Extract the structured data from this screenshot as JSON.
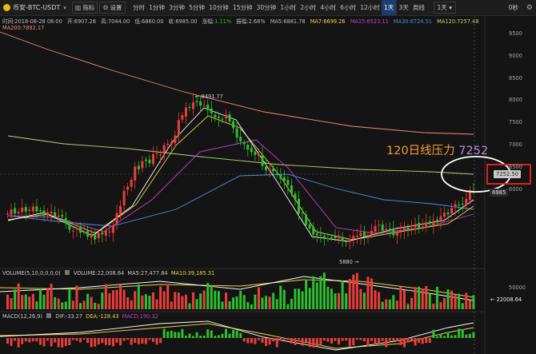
{
  "toolbar": {
    "pair": "币安-BTC-USDT",
    "indicator_btn": "指标",
    "settings_btn": "设置",
    "intervals": [
      "分时",
      "1分钟",
      "3分钟",
      "5分钟",
      "10分钟",
      "15分钟",
      "30分钟",
      "1小时",
      "2小时",
      "4小时",
      "6小时",
      "12小时",
      "1天",
      "3天",
      "周线"
    ],
    "active_interval": "1天",
    "interval_select": "1天",
    "seconds": "0秒"
  },
  "info": {
    "time": "时间:2018-08-28 08:00",
    "open": "开:6907.26",
    "high": "高:7044.00",
    "low": "低:6860.00",
    "close": "收:6985.00",
    "change_label": "涨幅:",
    "change_value": "1.11%",
    "amplitude": "振幅:2.68%",
    "ma5": "MA5:6881.78",
    "ma7": "MA7:6699.26",
    "ma15": "MA15:6523.11",
    "ma30": "MA30:6724.51",
    "ma120": "MA120:7257.48",
    "ma200": "MA200:7892.17"
  },
  "main_chart": {
    "y_ticks": [
      9500,
      9000,
      8500,
      8000,
      7500,
      7000,
      6500,
      6000
    ],
    "high_mark": "← 8491.77",
    "low_mark": "5880 →",
    "price_tag_grey": "7252.50",
    "price_tag_current": "6985",
    "annotation_text": "120日线压力",
    "annotation_value": "7252"
  },
  "volume_panel": {
    "title": "VOLUME(5,10,0,0,0,0)",
    "volume": "VOLUME:22,008.64",
    "ma5": "MA5:27,477.84",
    "ma10": "MA10:39,185.31",
    "y_tick": "50000",
    "current_tag": "← 22008.64"
  },
  "macd_panel": {
    "title": "MACD(12,26,9)",
    "dif": "DIF:-33.27",
    "dea": "DEA:-128.43",
    "macd": "MACD:190.32"
  },
  "colors": {
    "up": "#ea3e3c",
    "down": "#2fbe2f",
    "ma5": "#ffffff",
    "ma7": "#e8d84c",
    "ma15": "#c440c4",
    "ma30": "#4d8fe0",
    "ma120": "#b9d27a",
    "ma200": "#f08a7e",
    "annotation": "#f39a3c"
  }
}
